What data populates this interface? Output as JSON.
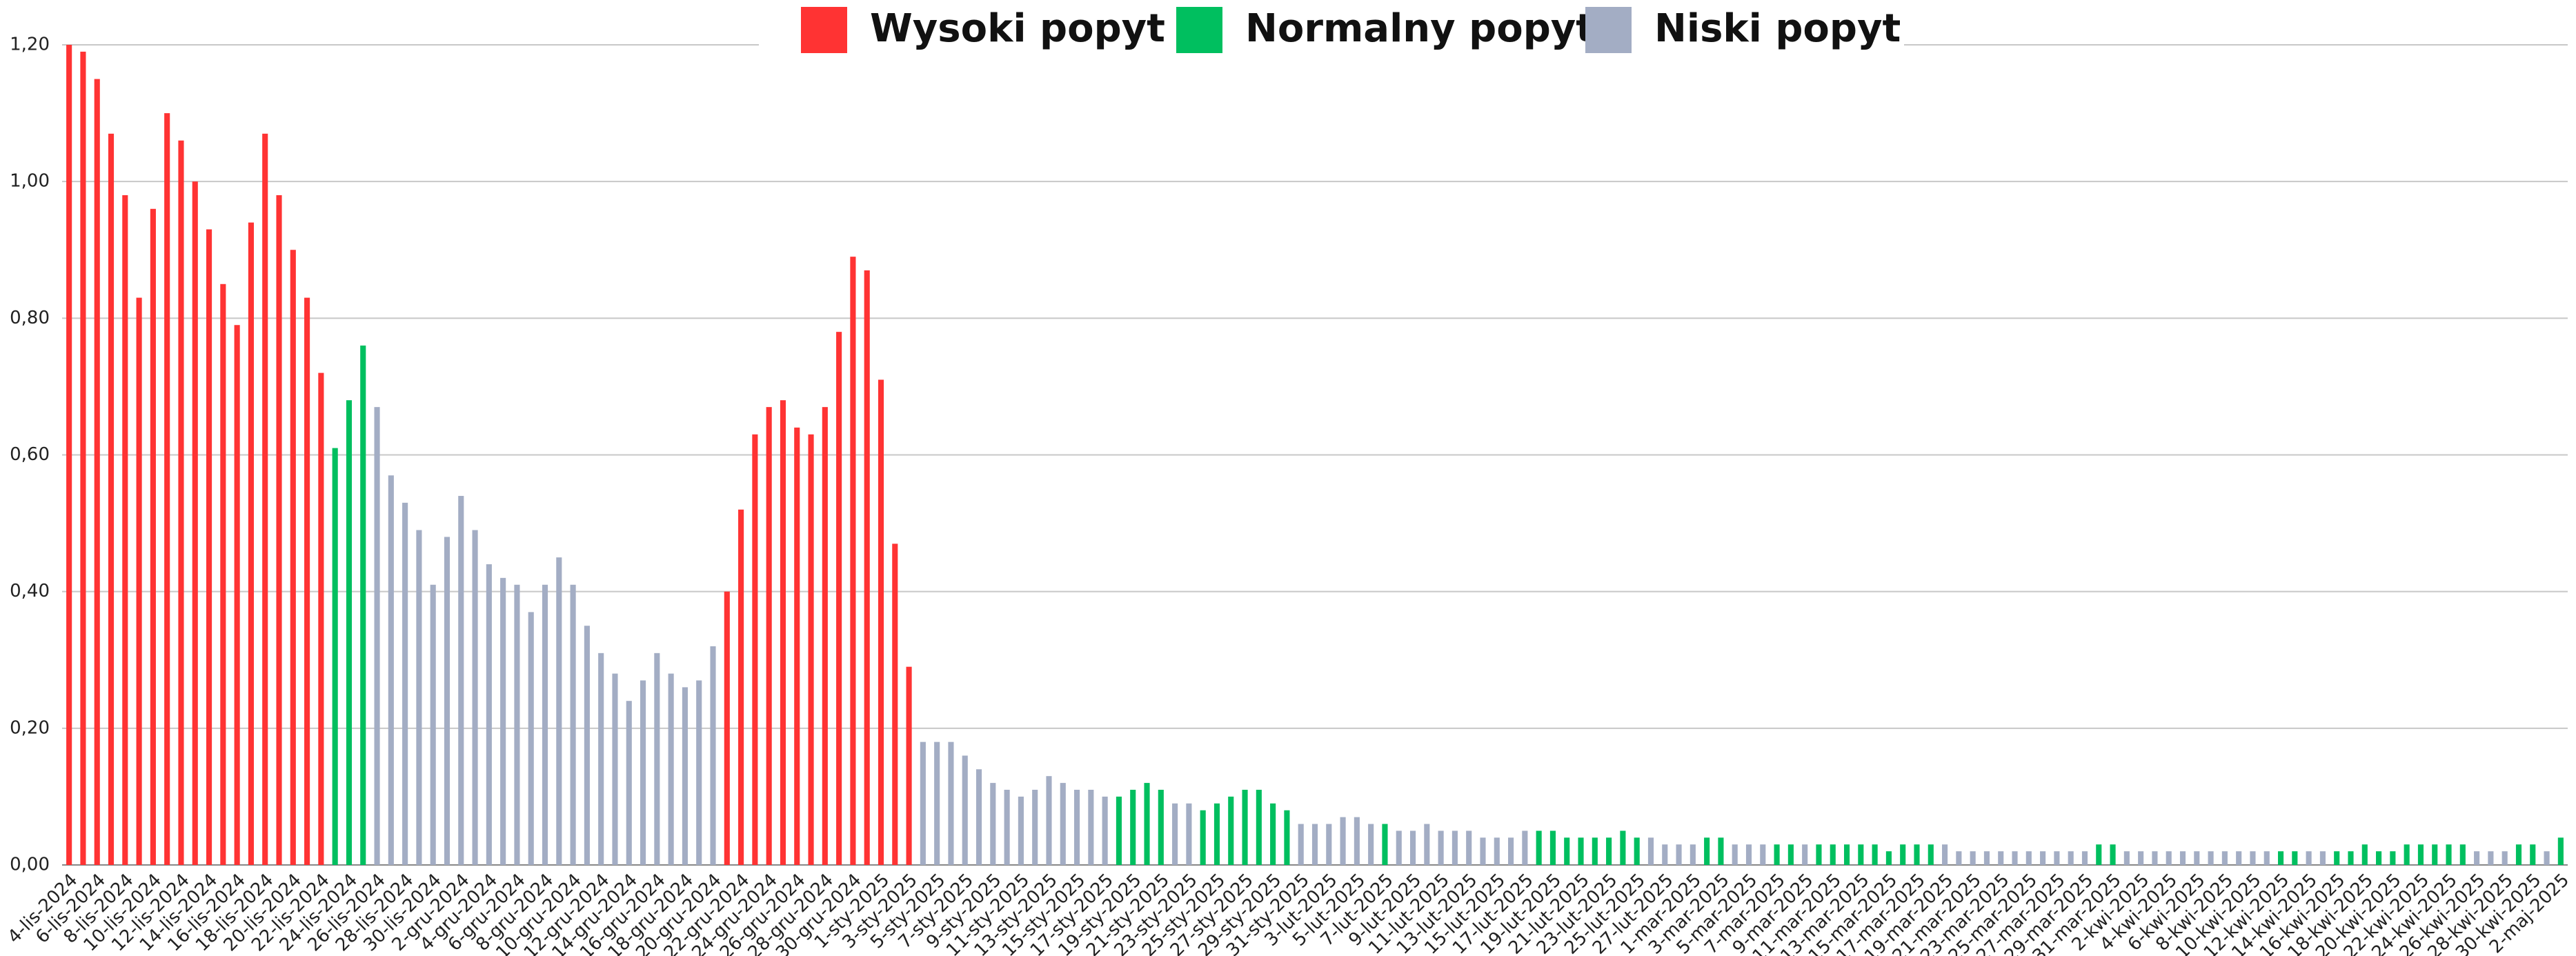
{
  "chart_data": {
    "type": "bar",
    "categories": [
      "4-lis-2024",
      null,
      "6-lis-2024",
      null,
      "8-lis-2024",
      null,
      "10-lis-2024",
      null,
      "12-lis-2024",
      null,
      "14-lis-2024",
      null,
      "16-lis-2024",
      null,
      "18-lis-2024",
      null,
      "20-lis-2024",
      null,
      "22-lis-2024",
      null,
      "24-lis-2024",
      null,
      "26-lis-2024",
      null,
      "28-lis-2024",
      null,
      "30-lis-2024",
      null,
      "2-gru-2024",
      null,
      "4-gru-2024",
      null,
      "6-gru-2024",
      null,
      "8-gru-2024",
      null,
      "10-gru-2024",
      null,
      "12-gru-2024",
      null,
      "14-gru-2024",
      null,
      "16-gru-2024",
      null,
      "18-gru-2024",
      null,
      "20-gru-2024",
      null,
      "22-gru-2024",
      null,
      "24-gru-2024",
      null,
      "26-gru-2024",
      null,
      "28-gru-2024",
      null,
      "30-gru-2024",
      null,
      "1-sty-2025",
      null,
      "3-sty-2025",
      null,
      "5-sty-2025",
      null,
      "7-sty-2025",
      null,
      "9-sty-2025",
      null,
      "11-sty-2025",
      null,
      "13-sty-2025",
      null,
      "15-sty-2025",
      null,
      "17-sty-2025",
      null,
      "19-sty-2025",
      null,
      "21-sty-2025",
      null,
      "23-sty-2025",
      null,
      "25-sty-2025",
      null,
      "27-sty-2025",
      null,
      "29-sty-2025",
      null,
      "31-sty-2025",
      null,
      "3-lut-2025",
      null,
      "5-lut-2025",
      null,
      "7-lut-2025",
      null,
      "9-lut-2025",
      null,
      "11-lut-2025",
      null,
      "13-lut-2025",
      null,
      "15-lut-2025",
      null,
      "17-lut-2025",
      null,
      "19-lut-2025",
      null,
      "21-lut-2025",
      null,
      "23-lut-2025",
      null,
      "25-lut-2025",
      null,
      "27-lut-2025",
      null,
      "1-mar-2025",
      null,
      "3-mar-2025",
      null,
      "5-mar-2025",
      null,
      "7-mar-2025",
      null,
      "9-mar-2025",
      null,
      "11-mar-2025",
      null,
      "13-mar-2025",
      null,
      "15-mar-2025",
      null,
      "17-mar-2025",
      null,
      "19-mar-2025",
      null,
      "21-mar-2025",
      null,
      "23-mar-2025",
      null,
      "25-mar-2025",
      null,
      "27-mar-2025",
      null,
      "29-mar-2025",
      null,
      "31-mar-2025",
      null,
      "2-kwi-2025",
      null,
      "4-kwi-2025",
      null,
      "6-kwi-2025",
      null,
      "8-kwi-2025",
      null,
      "10-kwi-2025",
      null,
      "12-kwi-2025",
      null,
      "14-kwi-2025",
      null,
      "16-kwi-2025",
      null,
      "18-kwi-2025",
      null,
      "20-kwi-2025",
      null,
      "22-kwi-2025",
      null,
      "24-kwi-2025",
      null,
      "26-kwi-2025",
      null,
      "28-kwi-2025",
      null,
      "30-kwi-2025",
      null,
      "2-maj-2025"
    ],
    "series": [
      {
        "name": "Wysoki popyt",
        "color": "#ff3333",
        "values": [
          1.2,
          1.19,
          1.15,
          1.07,
          0.98,
          0.83,
          0.96,
          1.1,
          1.06,
          1.0,
          0.93,
          0.85,
          0.79,
          0.94,
          1.07,
          0.98,
          0.9,
          0.83,
          0.72,
          null,
          null,
          null,
          null,
          null,
          null,
          null,
          null,
          null,
          null,
          null,
          null,
          null,
          null,
          null,
          null,
          null,
          null,
          null,
          null,
          null,
          null,
          null,
          null,
          null,
          null,
          null,
          null,
          0.4,
          0.52,
          0.63,
          0.67,
          0.68,
          0.64,
          0.63,
          0.67,
          0.78,
          0.89,
          0.87,
          0.71,
          0.47,
          0.29,
          null,
          null,
          null,
          null,
          null,
          null,
          null,
          null,
          null,
          null,
          null,
          null,
          null,
          null,
          null,
          null,
          null,
          null,
          null,
          null,
          null,
          null,
          null,
          null,
          null,
          null,
          null,
          null,
          null,
          null,
          null,
          null,
          null,
          null,
          null,
          null,
          null,
          null,
          null,
          null,
          null,
          null,
          null,
          null,
          null,
          null,
          null,
          null,
          null,
          null,
          null,
          null,
          null,
          null,
          null,
          null,
          null,
          null,
          null,
          null,
          null,
          null,
          null,
          null,
          null,
          null,
          null,
          null,
          null,
          null,
          null,
          null,
          null,
          null,
          null,
          null,
          null,
          null,
          null,
          null,
          null,
          null,
          null,
          null,
          null,
          null,
          null,
          null,
          null,
          null,
          null,
          null,
          null,
          null,
          null,
          null,
          null,
          null,
          null,
          null,
          null,
          null,
          null,
          null,
          null,
          null,
          null,
          null,
          null,
          null,
          null,
          null,
          null,
          null,
          null,
          null,
          null,
          null
        ]
      },
      {
        "name": "Normalny popyt",
        "color": "#00bf5f",
        "values": [
          null,
          null,
          null,
          null,
          null,
          null,
          null,
          null,
          null,
          null,
          null,
          null,
          null,
          null,
          null,
          null,
          null,
          null,
          null,
          0.61,
          0.68,
          0.76,
          null,
          null,
          null,
          null,
          null,
          null,
          null,
          null,
          null,
          null,
          null,
          null,
          null,
          null,
          null,
          null,
          null,
          null,
          null,
          null,
          null,
          null,
          null,
          null,
          null,
          null,
          null,
          null,
          null,
          null,
          null,
          null,
          null,
          null,
          null,
          null,
          null,
          null,
          null,
          null,
          null,
          null,
          null,
          null,
          null,
          null,
          null,
          null,
          null,
          null,
          null,
          null,
          null,
          0.1,
          0.11,
          0.12,
          0.11,
          null,
          null,
          0.08,
          0.09,
          0.1,
          0.11,
          0.11,
          0.09,
          0.08,
          null,
          null,
          null,
          null,
          null,
          null,
          0.06,
          null,
          null,
          null,
          null,
          null,
          null,
          null,
          null,
          null,
          null,
          0.05,
          0.05,
          0.04,
          0.04,
          0.04,
          0.04,
          0.05,
          0.04,
          null,
          null,
          null,
          null,
          0.04,
          0.04,
          null,
          null,
          null,
          0.03,
          0.03,
          null,
          0.03,
          0.03,
          0.03,
          0.03,
          0.03,
          0.02,
          0.03,
          0.03,
          0.03,
          null,
          null,
          null,
          null,
          null,
          null,
          null,
          null,
          null,
          null,
          null,
          0.03,
          0.03,
          null,
          null,
          null,
          null,
          null,
          null,
          null,
          null,
          null,
          null,
          null,
          0.02,
          0.02,
          null,
          null,
          0.02,
          0.02,
          0.03,
          0.02,
          0.02,
          0.03,
          0.03,
          0.03,
          0.03,
          0.03,
          null,
          null,
          null,
          0.03,
          0.03,
          null,
          0.04
        ]
      },
      {
        "name": "Niski popyt",
        "color": "#a3adc4",
        "values": [
          null,
          null,
          null,
          null,
          null,
          null,
          null,
          null,
          null,
          null,
          null,
          null,
          null,
          null,
          null,
          null,
          null,
          null,
          null,
          null,
          null,
          null,
          0.67,
          0.57,
          0.53,
          0.49,
          0.41,
          0.48,
          0.54,
          0.49,
          0.44,
          0.42,
          0.41,
          0.37,
          0.41,
          0.45,
          0.41,
          0.35,
          0.31,
          0.28,
          0.24,
          0.27,
          0.31,
          0.28,
          0.26,
          0.27,
          0.32,
          null,
          null,
          null,
          null,
          null,
          null,
          null,
          null,
          null,
          null,
          null,
          null,
          null,
          null,
          0.18,
          0.18,
          0.18,
          0.16,
          0.14,
          0.12,
          0.11,
          0.1,
          0.11,
          0.13,
          0.12,
          0.11,
          0.11,
          0.1,
          null,
          null,
          null,
          null,
          0.09,
          0.09,
          null,
          null,
          null,
          null,
          null,
          null,
          null,
          0.06,
          0.06,
          0.06,
          0.07,
          0.07,
          0.06,
          null,
          0.05,
          0.05,
          0.06,
          0.05,
          0.05,
          0.05,
          0.04,
          0.04,
          0.04,
          0.05,
          null,
          null,
          null,
          null,
          null,
          null,
          null,
          null,
          0.04,
          0.03,
          0.03,
          0.03,
          null,
          null,
          0.03,
          0.03,
          0.03,
          null,
          null,
          0.03,
          null,
          null,
          null,
          null,
          null,
          null,
          null,
          null,
          null,
          0.03,
          0.02,
          0.02,
          0.02,
          0.02,
          0.02,
          0.02,
          0.02,
          0.02,
          0.02,
          0.02,
          null,
          null,
          0.02,
          0.02,
          0.02,
          0.02,
          0.02,
          0.02,
          0.02,
          0.02,
          0.02,
          0.02,
          0.02,
          null,
          null,
          0.02,
          0.02,
          null,
          null,
          null,
          null,
          null,
          null,
          null,
          null,
          null,
          null,
          0.02,
          0.02,
          0.02,
          null,
          null,
          0.02,
          null
        ]
      }
    ],
    "ylim": [
      0,
      1.2
    ],
    "yticks": [
      {
        "value": 0,
        "label": "0,00"
      },
      {
        "value": 0.2,
        "label": "0,20"
      },
      {
        "value": 0.4,
        "label": "0,40"
      },
      {
        "value": 0.6,
        "label": "0,60"
      },
      {
        "value": 0.8,
        "label": "0,80"
      },
      {
        "value": 1.0,
        "label": "1,00"
      },
      {
        "value": 1.2,
        "label": "1,20"
      }
    ],
    "grid": true,
    "legend": "top"
  }
}
